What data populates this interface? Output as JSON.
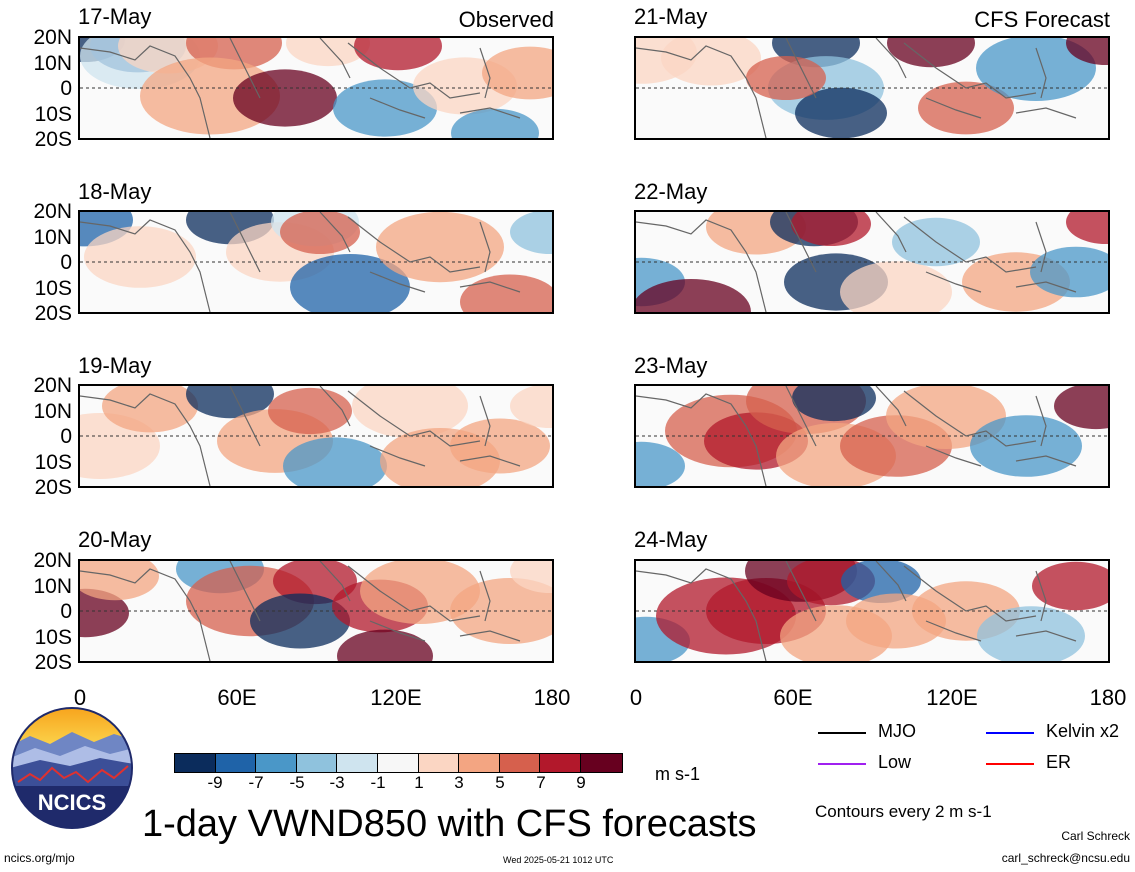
{
  "header": {
    "observed_label": "Observed",
    "forecast_label": "CFS Forecast"
  },
  "panels_left": [
    {
      "date": "17-May"
    },
    {
      "date": "18-May"
    },
    {
      "date": "19-May"
    },
    {
      "date": "20-May"
    }
  ],
  "panels_right": [
    {
      "date": "21-May"
    },
    {
      "date": "22-May"
    },
    {
      "date": "23-May"
    },
    {
      "date": "24-May"
    }
  ],
  "lat_labels": [
    "20N",
    "10N",
    "0",
    "10S",
    "20S"
  ],
  "lon_labels": [
    "0",
    "60E",
    "120E",
    "180"
  ],
  "colorbar": {
    "colors": [
      "#0b2c5c",
      "#1f63a8",
      "#4a97c8",
      "#8fc2dd",
      "#cfe4ef",
      "#f7f7f7",
      "#fbd6c3",
      "#f3a582",
      "#d6604d",
      "#b2182b",
      "#67001f"
    ],
    "ticks": [
      "-9",
      "-7",
      "-5",
      "-3",
      "-1",
      "1",
      "3",
      "5",
      "7",
      "9"
    ],
    "units": "m s-1"
  },
  "legend": {
    "items": [
      {
        "label": "MJO",
        "color": "#000000"
      },
      {
        "label": "Kelvin x2",
        "color": "#0000ff"
      },
      {
        "label": "Low",
        "color": "#a020f0"
      },
      {
        "label": "ER",
        "color": "#ff0000"
      }
    ],
    "contour_note": "Contours every 2 m s-1"
  },
  "title": "1-day VWND850 with CFS forecasts",
  "logo_text": "NCICS",
  "footer": {
    "url": "ncics.org/mjo",
    "timestamp": "Wed 2025-05-21 1012 UTC",
    "author": "Carl Schreck",
    "email": "carl_schreck@ncsu.edu"
  }
}
